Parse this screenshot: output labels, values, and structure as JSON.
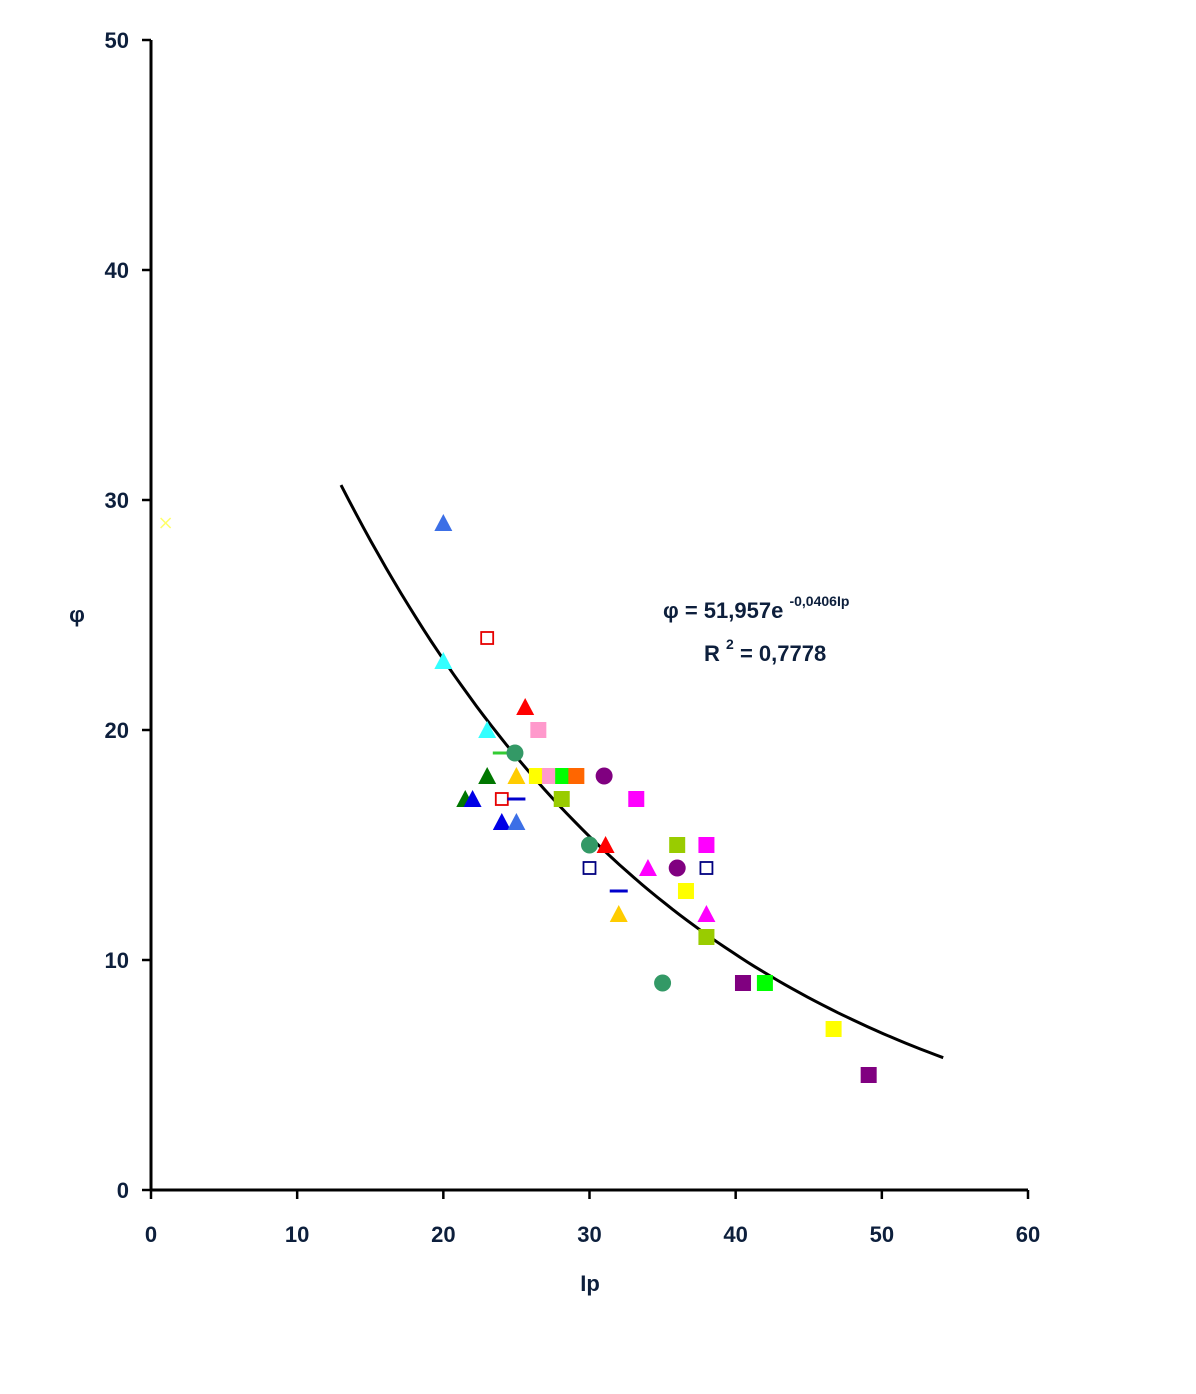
{
  "chart_data": {
    "type": "scatter",
    "xlabel": "Ip",
    "ylabel": "φ",
    "xlim": [
      0,
      60
    ],
    "ylim": [
      0,
      50
    ],
    "x_ticks": [
      "0",
      "10",
      "20",
      "30",
      "40",
      "50",
      "60"
    ],
    "y_ticks": [
      "0",
      "10",
      "20",
      "30",
      "40",
      "50"
    ],
    "x_tick_values": [
      0,
      10,
      20,
      30,
      40,
      50,
      60
    ],
    "y_tick_values": [
      0,
      10,
      20,
      30,
      40,
      50
    ],
    "grid": false,
    "legend": "none",
    "trendline": {
      "type": "exponential",
      "a": 51.957,
      "b": -0.0406,
      "x_range": [
        13,
        54.2
      ],
      "color": "#000000"
    },
    "equation": {
      "main": "φ = 51,957e",
      "exponent": "-0,0406Ip",
      "r2_prefix": "R",
      "r2_sup": "2",
      "r2_value": " = 0,7778"
    },
    "points": [
      {
        "x": 1,
        "y": 29,
        "shape": "x",
        "color": "#ffff66"
      },
      {
        "x": 20,
        "y": 29,
        "shape": "triangle",
        "color": "#3c6fe6"
      },
      {
        "x": 23,
        "y": 24,
        "shape": "square-open",
        "color": "#e60000"
      },
      {
        "x": 20,
        "y": 23,
        "shape": "triangle",
        "color": "#33ffff"
      },
      {
        "x": 23,
        "y": 20,
        "shape": "triangle",
        "color": "#33ffff"
      },
      {
        "x": 25.6,
        "y": 21,
        "shape": "triangle",
        "color": "#ff0000"
      },
      {
        "x": 26.5,
        "y": 20,
        "shape": "square",
        "color": "#ff99cc"
      },
      {
        "x": 24,
        "y": 19,
        "shape": "dash",
        "color": "#33cc33"
      },
      {
        "x": 24.9,
        "y": 19,
        "shape": "circle",
        "color": "#339966"
      },
      {
        "x": 23,
        "y": 18,
        "shape": "triangle",
        "color": "#007700"
      },
      {
        "x": 21.5,
        "y": 17,
        "shape": "triangle",
        "color": "#007700"
      },
      {
        "x": 22,
        "y": 17,
        "shape": "triangle",
        "color": "#0000e6"
      },
      {
        "x": 24,
        "y": 17,
        "shape": "square-open",
        "color": "#e60000"
      },
      {
        "x": 25,
        "y": 17,
        "shape": "dash",
        "color": "#0000cc"
      },
      {
        "x": 25,
        "y": 18,
        "shape": "triangle",
        "color": "#ffcc00"
      },
      {
        "x": 26.4,
        "y": 18,
        "shape": "square",
        "color": "#ffff00"
      },
      {
        "x": 27.3,
        "y": 18,
        "shape": "square",
        "color": "#ff99cc"
      },
      {
        "x": 28.2,
        "y": 18,
        "shape": "square",
        "color": "#00ff00"
      },
      {
        "x": 29.1,
        "y": 18,
        "shape": "square",
        "color": "#ff6600"
      },
      {
        "x": 28.1,
        "y": 17,
        "shape": "square",
        "color": "#99cc00"
      },
      {
        "x": 24,
        "y": 16,
        "shape": "triangle",
        "color": "#0000e6"
      },
      {
        "x": 25,
        "y": 16,
        "shape": "triangle",
        "color": "#3c6fe6"
      },
      {
        "x": 31,
        "y": 18,
        "shape": "circle",
        "color": "#800080"
      },
      {
        "x": 33.2,
        "y": 17,
        "shape": "square",
        "color": "#ff00ff"
      },
      {
        "x": 30,
        "y": 15,
        "shape": "circle",
        "color": "#339966"
      },
      {
        "x": 31.1,
        "y": 15,
        "shape": "triangle",
        "color": "#ff0000"
      },
      {
        "x": 30,
        "y": 14,
        "shape": "square-open",
        "color": "#000080"
      },
      {
        "x": 32,
        "y": 13,
        "shape": "dash",
        "color": "#0000cc"
      },
      {
        "x": 32,
        "y": 12,
        "shape": "triangle",
        "color": "#ffcc00"
      },
      {
        "x": 34,
        "y": 14,
        "shape": "triangle",
        "color": "#ff00ff"
      },
      {
        "x": 36,
        "y": 15,
        "shape": "square",
        "color": "#99cc00"
      },
      {
        "x": 36,
        "y": 14,
        "shape": "circle",
        "color": "#800080"
      },
      {
        "x": 36.6,
        "y": 13,
        "shape": "square",
        "color": "#ffff00"
      },
      {
        "x": 38,
        "y": 15,
        "shape": "square",
        "color": "#ff00ff"
      },
      {
        "x": 38,
        "y": 14,
        "shape": "square-open",
        "color": "#000080"
      },
      {
        "x": 38,
        "y": 12,
        "shape": "triangle",
        "color": "#ff00ff"
      },
      {
        "x": 38,
        "y": 11,
        "shape": "square",
        "color": "#99cc00"
      },
      {
        "x": 35,
        "y": 9,
        "shape": "circle",
        "color": "#339966"
      },
      {
        "x": 40.5,
        "y": 9,
        "shape": "square",
        "color": "#800080"
      },
      {
        "x": 42,
        "y": 9,
        "shape": "square",
        "color": "#00ff00"
      },
      {
        "x": 46.7,
        "y": 7,
        "shape": "square",
        "color": "#ffff00"
      },
      {
        "x": 49.1,
        "y": 5,
        "shape": "square",
        "color": "#800080"
      }
    ]
  }
}
